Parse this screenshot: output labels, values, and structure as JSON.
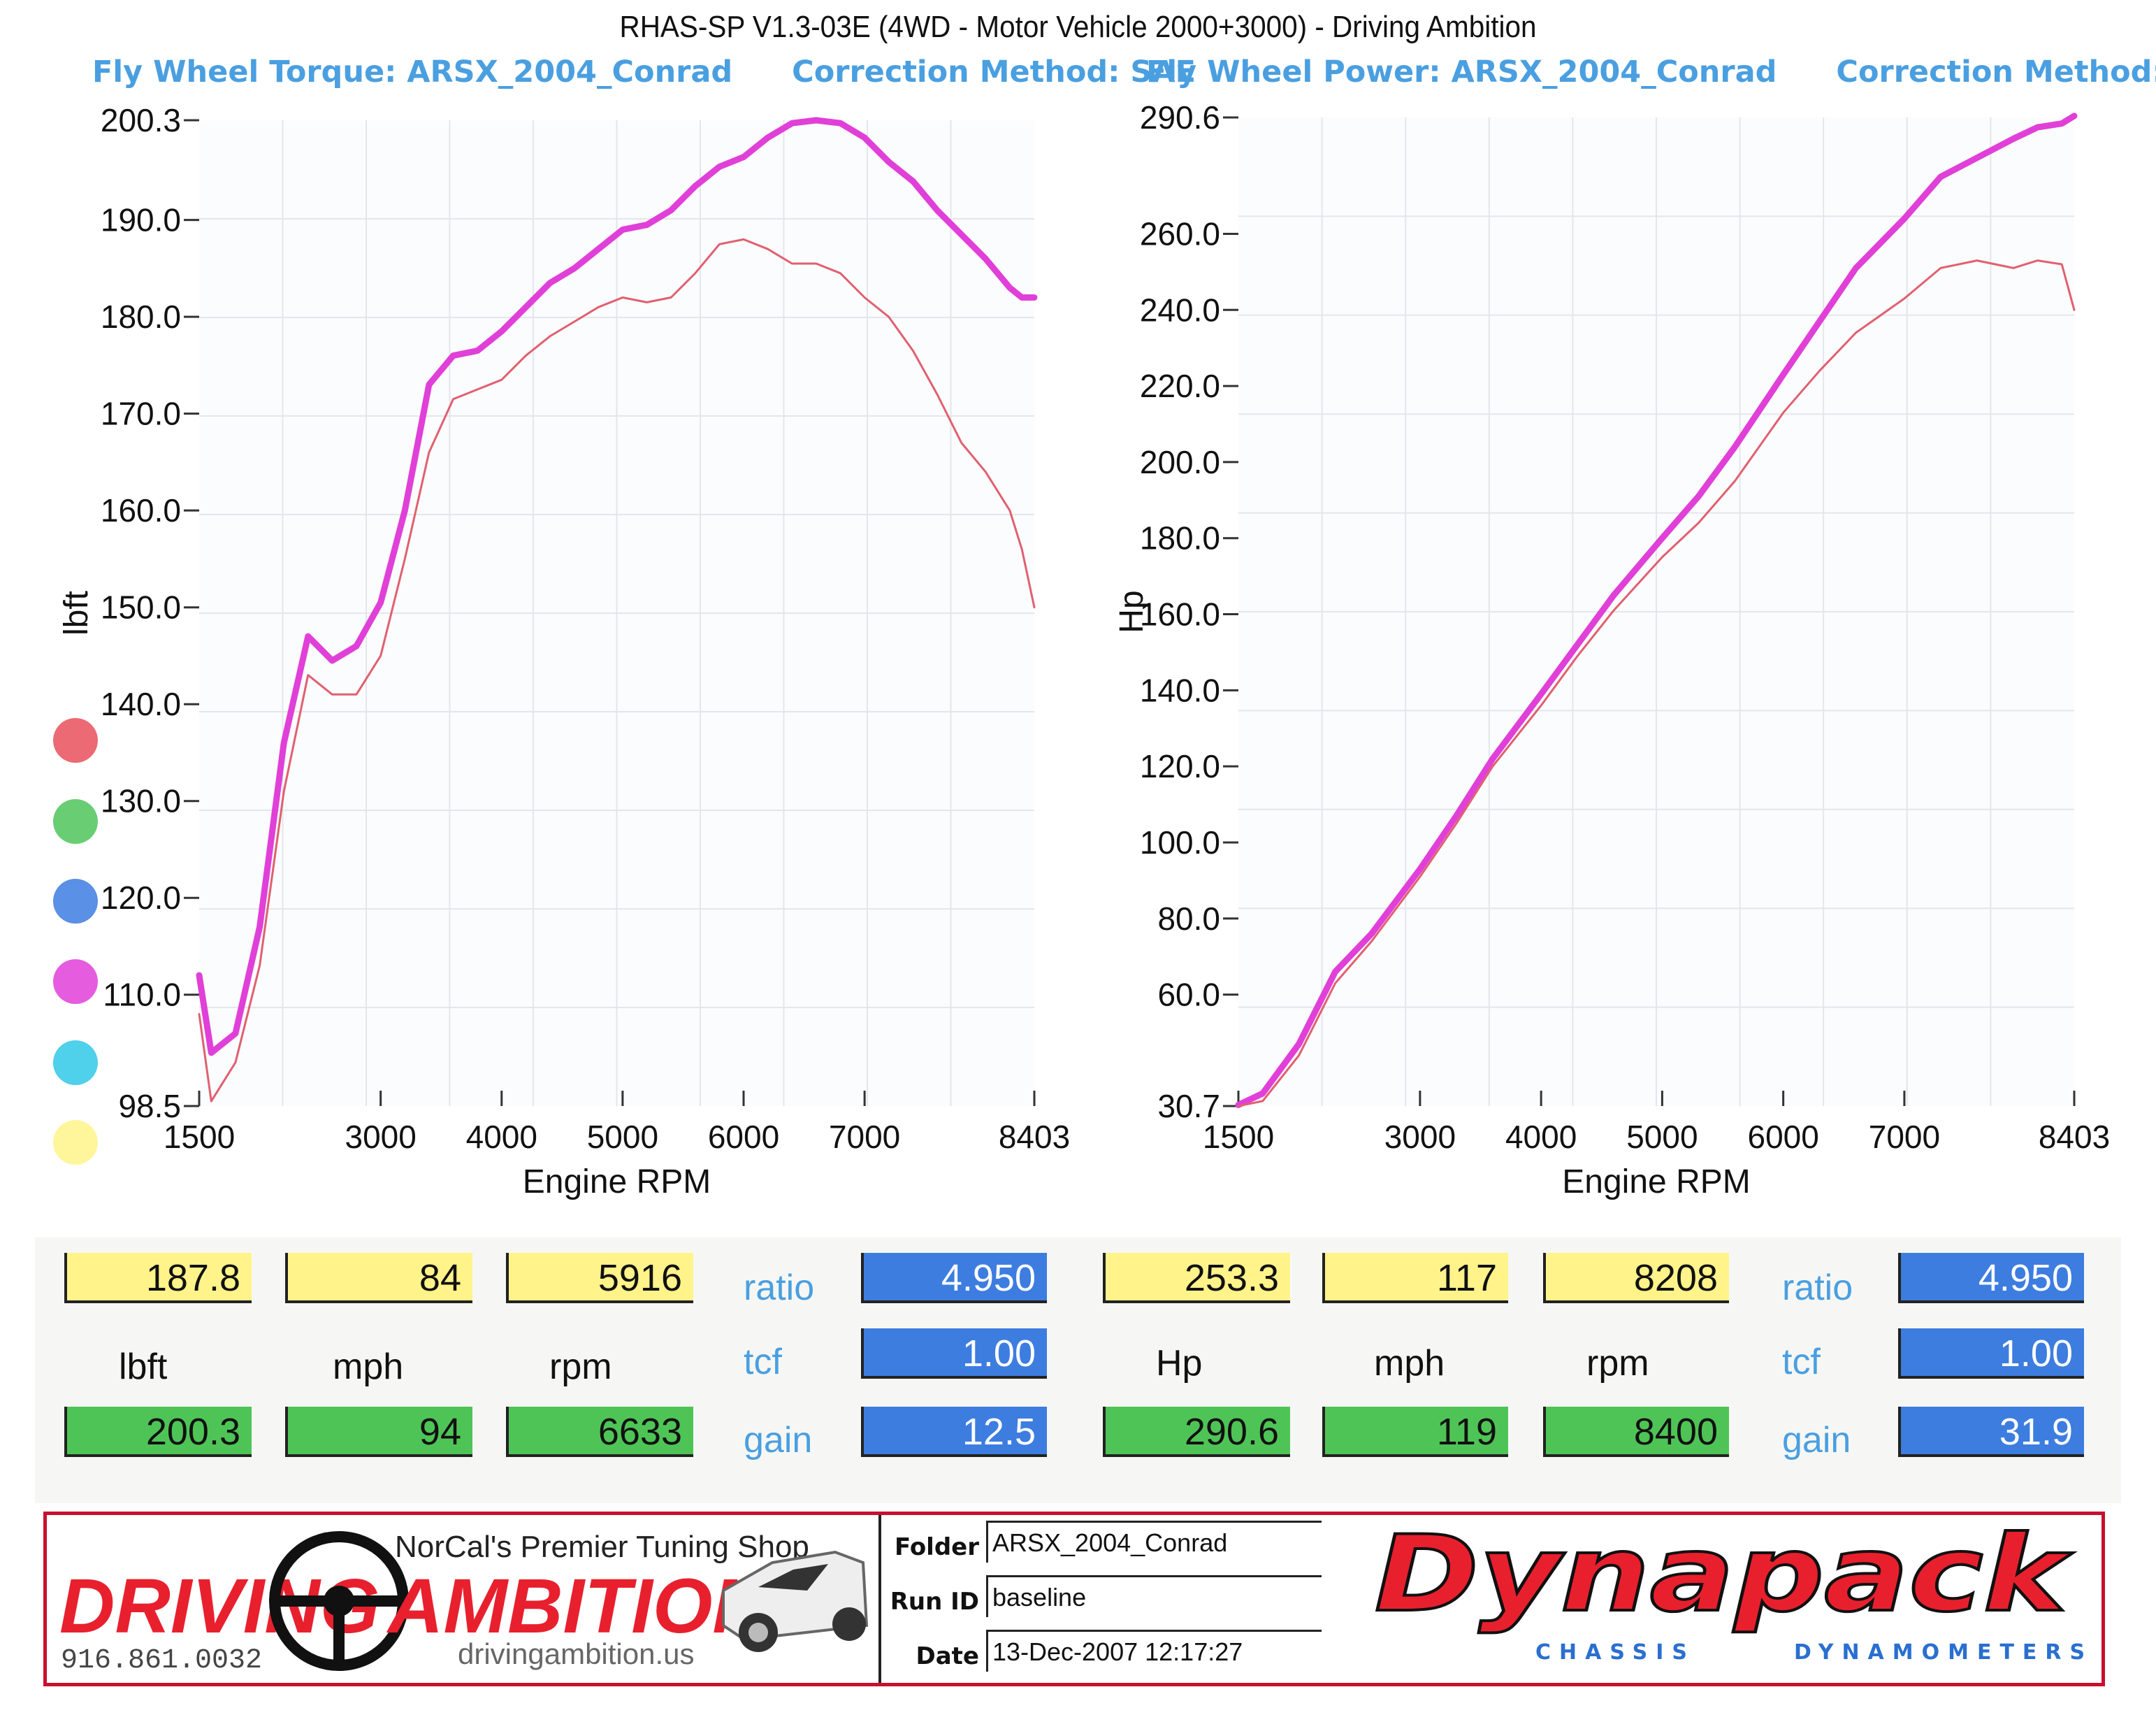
{
  "title": "RHAS-SP V1.3-03E  (4WD - Motor Vehicle 2000+3000) - Driving Ambition",
  "legend_colors": [
    "#e8505b",
    "#4fc45a",
    "#3d7de0",
    "#e040d8",
    "#30c8e8",
    "#fff38a"
  ],
  "chart_data": [
    {
      "type": "line",
      "title": "Fly Wheel Torque: ARSX_2004_Conrad",
      "subtitle": "Correction Method: SAE",
      "xlabel": "Engine RPM",
      "ylabel": "lbft",
      "xlim": [
        1500,
        8403
      ],
      "ylim": [
        98.5,
        200.3
      ],
      "xticks": [
        "1500",
        "3000",
        "4000",
        "5000",
        "6000",
        "7000",
        "8403"
      ],
      "xtick_values": [
        1500,
        3000,
        4000,
        5000,
        6000,
        7000,
        8403
      ],
      "yticks": [
        "200.3",
        "190.0",
        "180.0",
        "170.0",
        "160.0",
        "150.0",
        "140.0",
        "130.0",
        "120.0",
        "110.0",
        "98.5"
      ],
      "ytick_values": [
        200.3,
        190.0,
        180.0,
        170.0,
        160.0,
        150.0,
        140.0,
        130.0,
        120.0,
        110.0,
        98.5
      ],
      "grid": true,
      "series": [
        {
          "color": "#e040d8",
          "x": [
            1500,
            1600,
            1800,
            2000,
            2200,
            2400,
            2600,
            2800,
            3000,
            3200,
            3400,
            3600,
            3800,
            4000,
            4200,
            4400,
            4600,
            4800,
            5000,
            5200,
            5400,
            5600,
            5800,
            6000,
            6200,
            6400,
            6600,
            6800,
            7000,
            7200,
            7400,
            7600,
            7800,
            8000,
            8200,
            8300,
            8403
          ],
          "y": [
            112,
            104,
            106,
            117,
            136,
            147,
            144.5,
            146,
            150.5,
            160,
            173,
            176,
            176.5,
            178.5,
            181,
            183.5,
            185,
            187,
            189,
            189.5,
            191,
            193.5,
            195.5,
            196.5,
            198.5,
            200,
            200.3,
            200,
            198.5,
            196,
            194,
            191,
            188.5,
            186,
            183,
            182,
            182
          ]
        },
        {
          "color": "#e06070",
          "x": [
            1500,
            1600,
            1800,
            2000,
            2200,
            2400,
            2600,
            2800,
            3000,
            3200,
            3400,
            3600,
            3800,
            4000,
            4200,
            4400,
            4600,
            4800,
            5000,
            5200,
            5400,
            5600,
            5800,
            6000,
            6200,
            6400,
            6600,
            6800,
            7000,
            7200,
            7400,
            7600,
            7800,
            8000,
            8200,
            8300,
            8403
          ],
          "y": [
            108,
            99,
            103,
            113,
            131,
            143,
            141,
            141,
            145,
            155,
            166,
            171.5,
            172.5,
            173.5,
            176,
            178,
            179.5,
            181,
            182,
            181.5,
            182,
            184.5,
            187.5,
            188,
            187,
            185.5,
            185.5,
            184.5,
            182,
            180,
            176.5,
            172,
            167,
            164,
            160,
            156,
            150
          ]
        }
      ]
    },
    {
      "type": "line",
      "title": "Fly Wheel Power: ARSX_2004_Conrad",
      "subtitle": "Correction Method: SAE",
      "xlabel": "Engine RPM",
      "ylabel": "Hp",
      "xlim": [
        1500,
        8403
      ],
      "ylim": [
        30.7,
        290.6
      ],
      "xticks": [
        "1500",
        "3000",
        "4000",
        "5000",
        "6000",
        "7000",
        "8403"
      ],
      "xtick_values": [
        1500,
        3000,
        4000,
        5000,
        6000,
        7000,
        8403
      ],
      "yticks": [
        "290.6",
        "260.0",
        "240.0",
        "220.0",
        "200.0",
        "180.0",
        "160.0",
        "140.0",
        "120.0",
        "100.0",
        "80.0",
        "60.0",
        "30.7"
      ],
      "ytick_values": [
        290.6,
        260.0,
        240.0,
        220.0,
        200.0,
        180.0,
        160.0,
        140.0,
        120.0,
        100.0,
        80.0,
        60.0,
        30.7
      ],
      "grid": true,
      "series": [
        {
          "color": "#e040d8",
          "x": [
            1500,
            1700,
            2000,
            2300,
            2600,
            3000,
            3300,
            3600,
            4000,
            4300,
            4600,
            5000,
            5300,
            5600,
            6000,
            6300,
            6600,
            7000,
            7300,
            7600,
            7900,
            8100,
            8300,
            8403
          ],
          "y": [
            31,
            34,
            47,
            66,
            76,
            93,
            107,
            122,
            139,
            152,
            165,
            180,
            191,
            204,
            223,
            237,
            251,
            264,
            275,
            280,
            285,
            288,
            289,
            291
          ]
        },
        {
          "color": "#e06070",
          "x": [
            1500,
            1700,
            2000,
            2300,
            2600,
            3000,
            3300,
            3600,
            4000,
            4300,
            4600,
            5000,
            5300,
            5600,
            6000,
            6300,
            6600,
            7000,
            7300,
            7600,
            7900,
            8100,
            8300,
            8403
          ],
          "y": [
            30.7,
            32,
            44,
            63,
            74,
            91,
            105,
            120,
            136,
            149,
            161,
            175,
            184,
            195,
            213,
            224,
            234,
            243,
            251,
            253,
            251,
            253,
            252,
            240
          ]
        }
      ]
    }
  ],
  "readouts": {
    "torque": {
      "row1": [
        "187.8",
        "84",
        "5916"
      ],
      "units": [
        "lbft",
        "mph",
        "rpm"
      ],
      "row2": [
        "200.3",
        "94",
        "6633"
      ],
      "labels": [
        "ratio",
        "tcf",
        "gain"
      ],
      "values": [
        "4.950",
        "1.00",
        "12.5"
      ]
    },
    "power": {
      "row1": [
        "253.3",
        "117",
        "8208"
      ],
      "units": [
        "Hp",
        "mph",
        "rpm"
      ],
      "row2": [
        "290.6",
        "119",
        "8400"
      ],
      "labels": [
        "ratio",
        "tcf",
        "gain"
      ],
      "values": [
        "4.950",
        "1.00",
        "31.9"
      ]
    }
  },
  "footer": {
    "brand": {
      "tagline": "NorCal's Premier Tuning Shop",
      "name_left": "DRIVING",
      "name_right": "AMBITION",
      "phone": "916.861.0032",
      "website": "drivingambition.us"
    },
    "run_info": {
      "folder_label": "Folder",
      "folder_value": "ARSX_2004_Conrad",
      "run_label": "Run ID",
      "run_value": "baseline",
      "date_label": "Date",
      "date_value": "13-Dec-2007  12:17:27"
    },
    "dynapack": {
      "name": "Dynapack",
      "sub_left": "CHASSIS",
      "sub_right": "DYNAMOMETERS"
    }
  }
}
